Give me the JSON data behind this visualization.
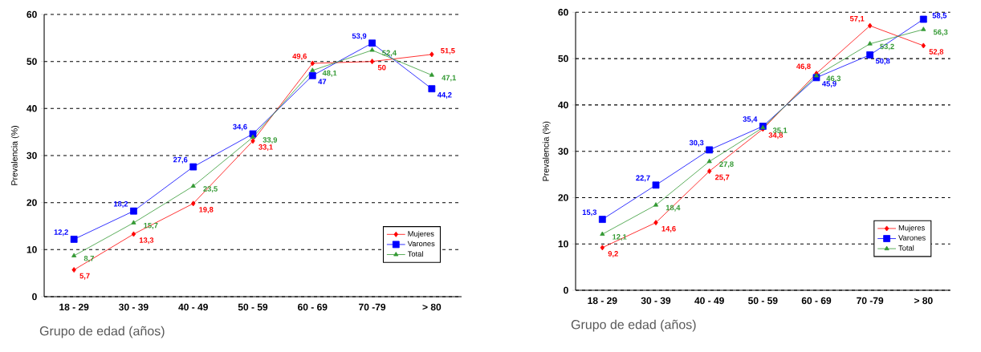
{
  "chart_data": [
    {
      "type": "line",
      "xlabel": "Grupo de edad (años)",
      "ylabel": "Prevalencia (%)",
      "categories": [
        "18 - 29",
        "30 - 39",
        "40 - 49",
        "50 - 59",
        "60 - 69",
        "70 -79",
        "> 80"
      ],
      "ylim": [
        0,
        60
      ],
      "yticks": [
        0,
        10,
        20,
        30,
        40,
        50,
        60
      ],
      "grid": "y",
      "legend": "bottom right",
      "series": [
        {
          "name": "Mujeres",
          "color": "#ff0000",
          "marker": "diamond",
          "values": [
            5.7,
            13.3,
            19.8,
            33.1,
            49.6,
            50,
            51.5
          ],
          "value_labels": [
            "5,7",
            "13,3",
            "19,8",
            "33,1",
            "49,6",
            "50",
            "51,5"
          ]
        },
        {
          "name": "Varones",
          "color": "#0000ff",
          "marker": "square",
          "values": [
            12.2,
            18.2,
            27.6,
            34.6,
            47,
            53.9,
            44.2
          ],
          "value_labels": [
            "12,2",
            "18,2",
            "27,6",
            "34,6",
            "47",
            "53,9",
            "44,2"
          ]
        },
        {
          "name": "Total",
          "color": "#339933",
          "marker": "triangle",
          "values": [
            8.7,
            15.7,
            23.5,
            33.9,
            48.1,
            52.4,
            47.1
          ],
          "value_labels": [
            "8,7",
            "15,7",
            "23,5",
            "33,9",
            "48,1",
            "52,4",
            "47,1"
          ]
        }
      ]
    },
    {
      "type": "line",
      "xlabel": "Grupo de edad (años)",
      "ylabel": "Prevalencia (%)",
      "categories": [
        "18 - 29",
        "30 - 39",
        "40 - 49",
        "50 - 59",
        "60 - 69",
        "70 -79",
        "> 80"
      ],
      "ylim": [
        0,
        60
      ],
      "yticks": [
        0,
        10,
        20,
        30,
        40,
        50,
        60
      ],
      "grid": "y",
      "legend": "bottom right",
      "series": [
        {
          "name": "Mujeres",
          "color": "#ff0000",
          "marker": "diamond",
          "values": [
            9.2,
            14.6,
            25.7,
            34.8,
            46.8,
            57.1,
            52.8
          ],
          "value_labels": [
            "9,2",
            "14,6",
            "25,7",
            "34,8",
            "46,8",
            "57,1",
            "52,8"
          ]
        },
        {
          "name": "Varones",
          "color": "#0000ff",
          "marker": "square",
          "values": [
            15.3,
            22.7,
            30.3,
            35.4,
            45.9,
            50.8,
            58.5
          ],
          "value_labels": [
            "15,3",
            "22,7",
            "30,3",
            "35,4",
            "45,9",
            "50,8",
            "58,5"
          ]
        },
        {
          "name": "Total",
          "color": "#339933",
          "marker": "triangle",
          "values": [
            12.1,
            18.4,
            27.8,
            35.1,
            46.3,
            53.2,
            56.3
          ],
          "value_labels": [
            "12,1",
            "18,4",
            "27,8",
            "35,1",
            "46,3",
            "53,2",
            "56,3"
          ]
        }
      ]
    }
  ]
}
